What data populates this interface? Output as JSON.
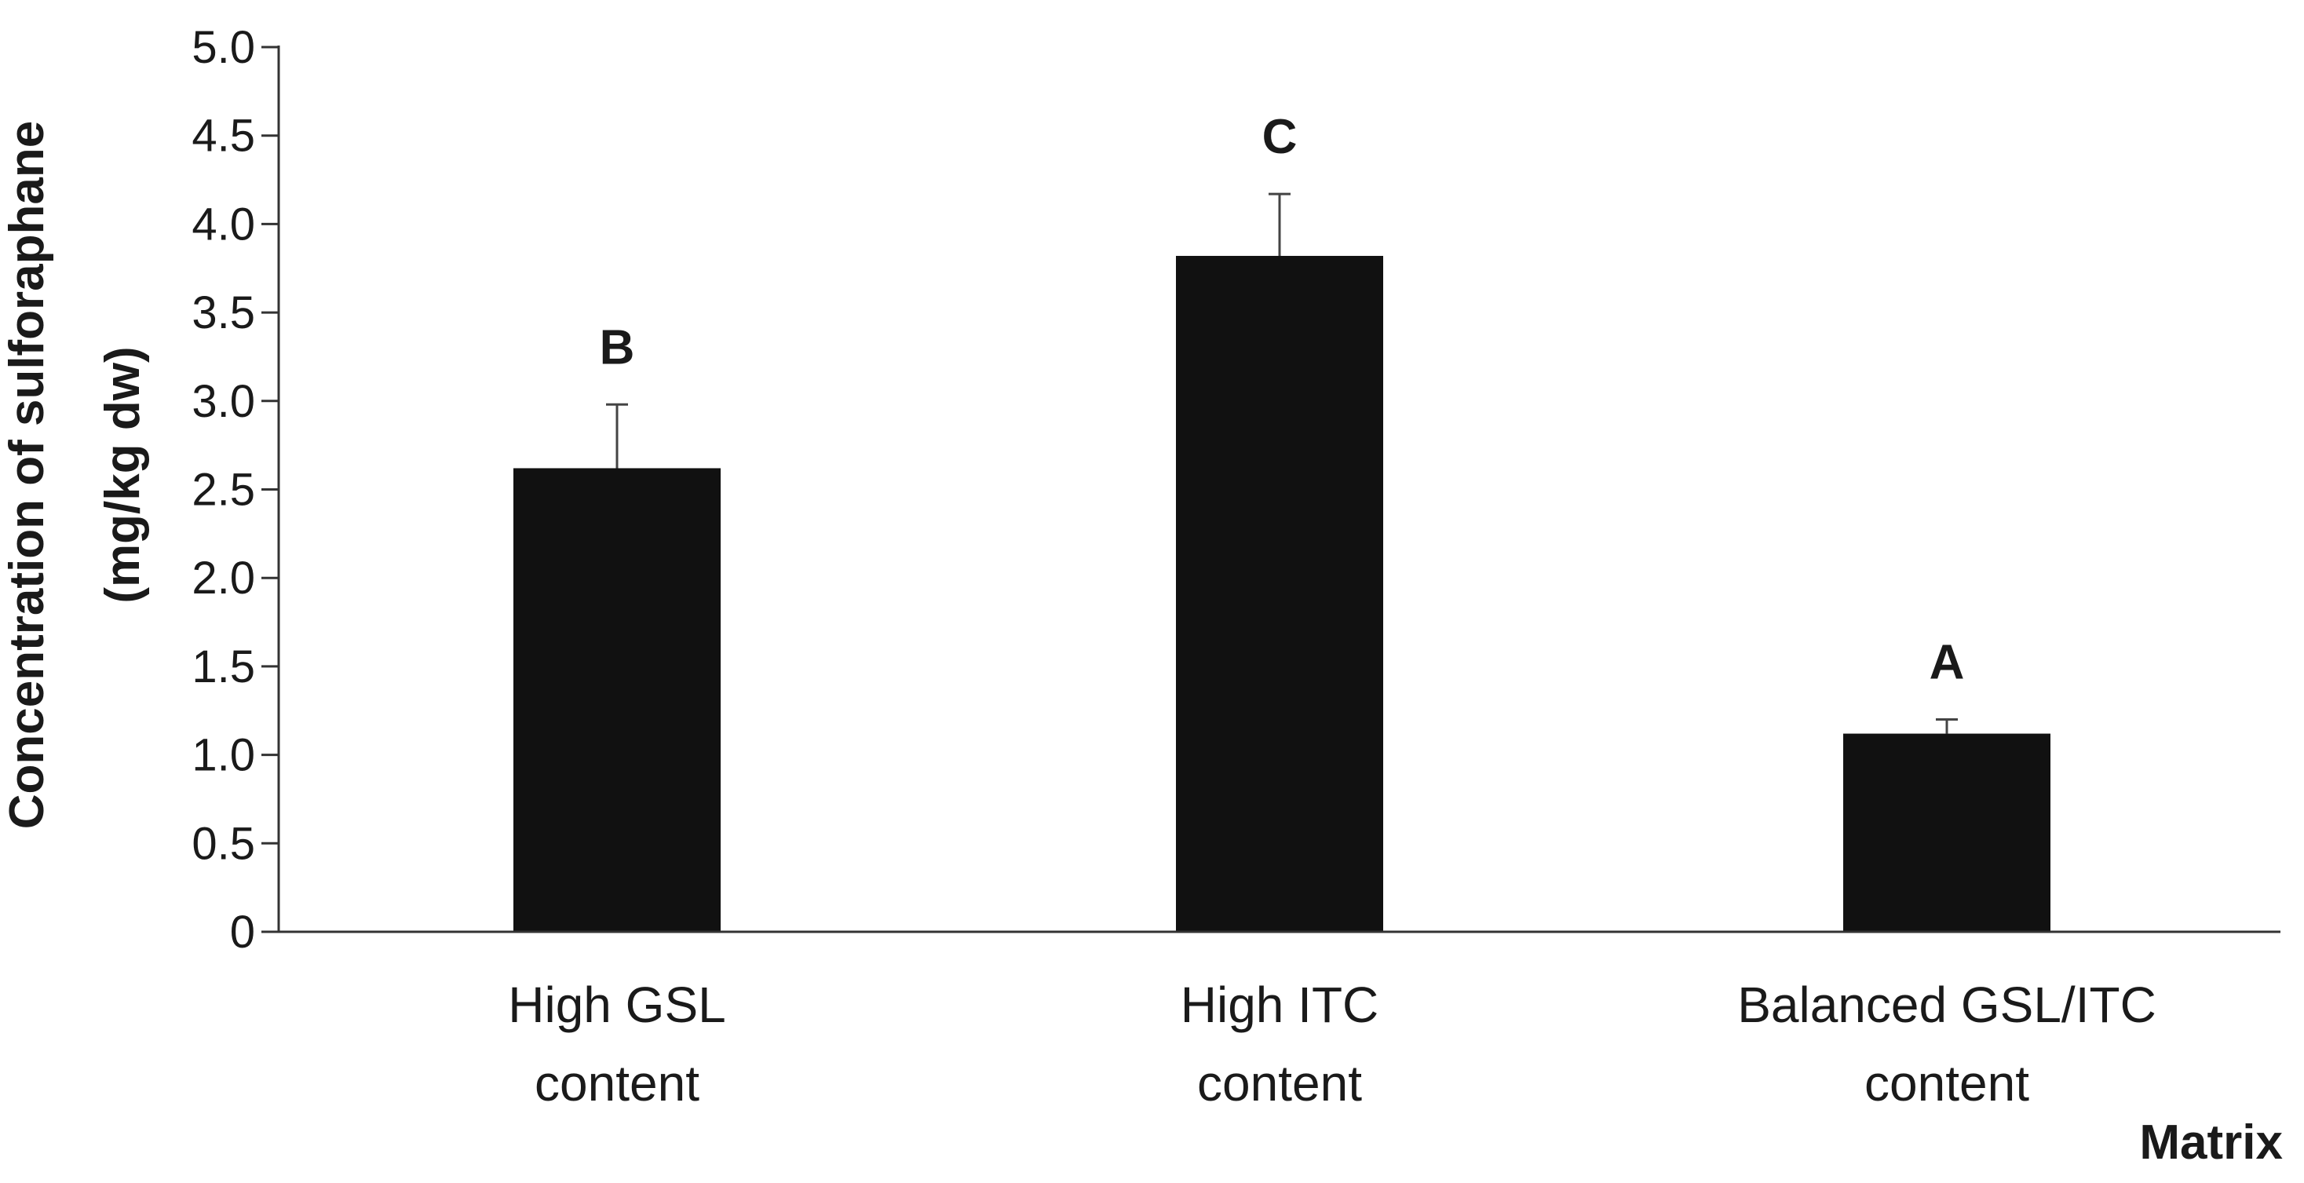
{
  "chart_data": {
    "type": "bar",
    "categories": [
      [
        "High GSL",
        "content"
      ],
      [
        "High ITC",
        "content"
      ],
      [
        "Balanced GSL/ITC",
        "content"
      ]
    ],
    "values": [
      2.62,
      3.82,
      1.12
    ],
    "error_plus": [
      0.36,
      0.35,
      0.08
    ],
    "significance_letters": [
      "B",
      "C",
      "A"
    ],
    "ylabel_lines": [
      "Concentration of sulforaphane",
      "(mg/kg dw)"
    ],
    "xlabel": "Matrix",
    "ylim": [
      0,
      5.0
    ],
    "yticks": [
      0,
      0.5,
      1.0,
      1.5,
      2.0,
      2.5,
      3.0,
      3.5,
      4.0,
      4.5,
      5.0
    ],
    "ytick_labels": [
      "0",
      "0.5",
      "1.0",
      "1.5",
      "2.0",
      "2.5",
      "3.0",
      "3.5",
      "4.0",
      "4.5",
      "5.0"
    ],
    "grid": false,
    "legend": "none",
    "colors": {
      "bar": "#111111",
      "axis": "#333333",
      "error_bar": "#444444"
    }
  }
}
